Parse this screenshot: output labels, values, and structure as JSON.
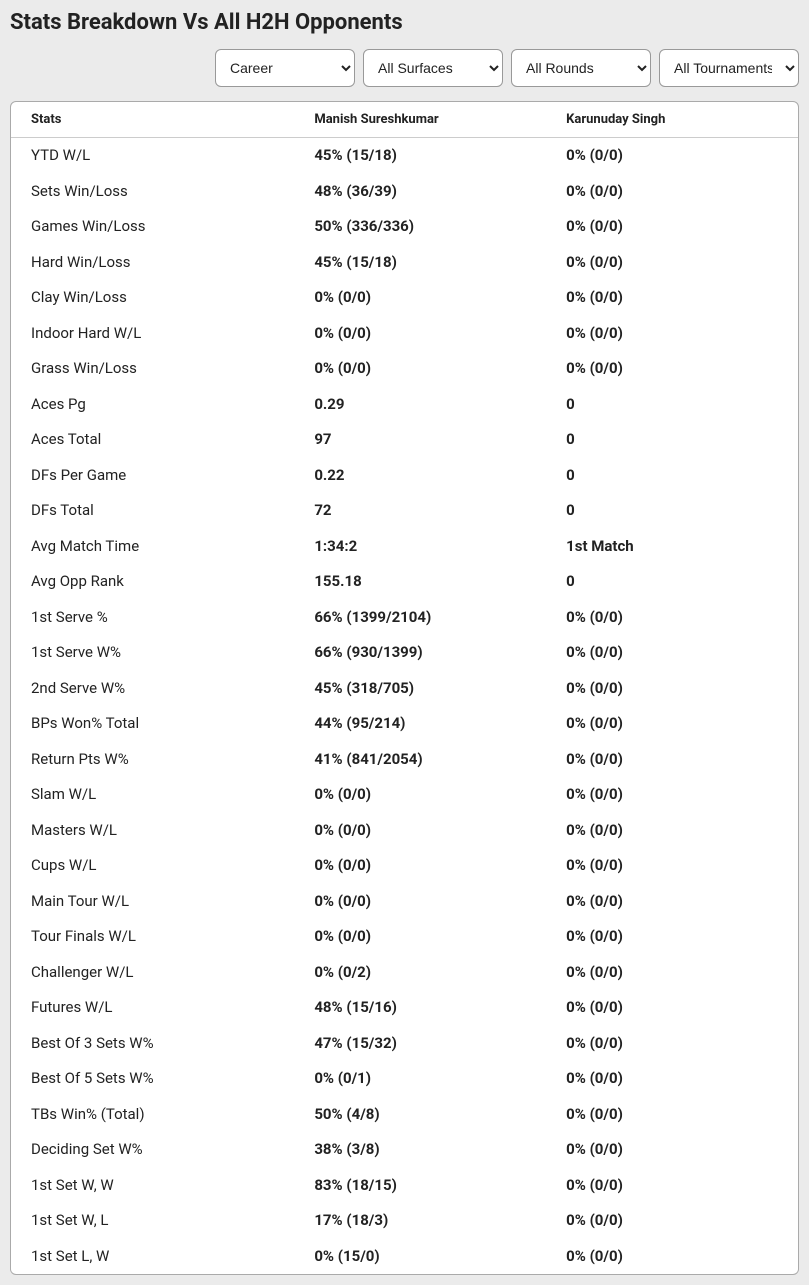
{
  "title": "Stats Breakdown Vs All H2H Opponents",
  "filters": {
    "period": {
      "selected": "Career",
      "options": [
        "Career"
      ]
    },
    "surface": {
      "selected": "All Surfaces",
      "options": [
        "All Surfaces"
      ]
    },
    "round": {
      "selected": "All Rounds",
      "options": [
        "All Rounds"
      ]
    },
    "tournament": {
      "selected": "All Tournaments",
      "options": [
        "All Tournaments"
      ]
    }
  },
  "table": {
    "headers": [
      "Stats",
      "Manish Sureshkumar",
      "Karunuday Singh"
    ],
    "rows": [
      [
        "YTD W/L",
        "45% (15/18)",
        "0% (0/0)"
      ],
      [
        "Sets Win/Loss",
        "48% (36/39)",
        "0% (0/0)"
      ],
      [
        "Games Win/Loss",
        "50% (336/336)",
        "0% (0/0)"
      ],
      [
        "Hard Win/Loss",
        "45% (15/18)",
        "0% (0/0)"
      ],
      [
        "Clay Win/Loss",
        "0% (0/0)",
        "0% (0/0)"
      ],
      [
        "Indoor Hard W/L",
        "0% (0/0)",
        "0% (0/0)"
      ],
      [
        "Grass Win/Loss",
        "0% (0/0)",
        "0% (0/0)"
      ],
      [
        "Aces Pg",
        "0.29",
        "0"
      ],
      [
        "Aces Total",
        "97",
        "0"
      ],
      [
        "DFs Per Game",
        "0.22",
        "0"
      ],
      [
        "DFs Total",
        "72",
        "0"
      ],
      [
        "Avg Match Time",
        "1:34:2",
        "1st Match"
      ],
      [
        "Avg Opp Rank",
        "155.18",
        "0"
      ],
      [
        "1st Serve %",
        "66% (1399/2104)",
        "0% (0/0)"
      ],
      [
        "1st Serve W%",
        "66% (930/1399)",
        "0% (0/0)"
      ],
      [
        "2nd Serve W%",
        "45% (318/705)",
        "0% (0/0)"
      ],
      [
        "BPs Won% Total",
        "44% (95/214)",
        "0% (0/0)"
      ],
      [
        "Return Pts W%",
        "41% (841/2054)",
        "0% (0/0)"
      ],
      [
        "Slam W/L",
        "0% (0/0)",
        "0% (0/0)"
      ],
      [
        "Masters W/L",
        "0% (0/0)",
        "0% (0/0)"
      ],
      [
        "Cups W/L",
        "0% (0/0)",
        "0% (0/0)"
      ],
      [
        "Main Tour W/L",
        "0% (0/0)",
        "0% (0/0)"
      ],
      [
        "Tour Finals W/L",
        "0% (0/0)",
        "0% (0/0)"
      ],
      [
        "Challenger W/L",
        "0% (0/2)",
        "0% (0/0)"
      ],
      [
        "Futures W/L",
        "48% (15/16)",
        "0% (0/0)"
      ],
      [
        "Best Of 3 Sets W%",
        "47% (15/32)",
        "0% (0/0)"
      ],
      [
        "Best Of 5 Sets W%",
        "0% (0/1)",
        "0% (0/0)"
      ],
      [
        "TBs Win% (Total)",
        "50% (4/8)",
        "0% (0/0)"
      ],
      [
        "Deciding Set W%",
        "38% (3/8)",
        "0% (0/0)"
      ],
      [
        "1st Set W, W",
        "83% (18/15)",
        "0% (0/0)"
      ],
      [
        "1st Set W, L",
        "17% (18/3)",
        "0% (0/0)"
      ],
      [
        "1st Set L, W",
        "0% (15/0)",
        "0% (0/0)"
      ]
    ]
  },
  "colors": {
    "page_bg": "#ebebeb",
    "card_bg": "#ffffff",
    "border": "#aaaaaa",
    "text": "#222222"
  }
}
